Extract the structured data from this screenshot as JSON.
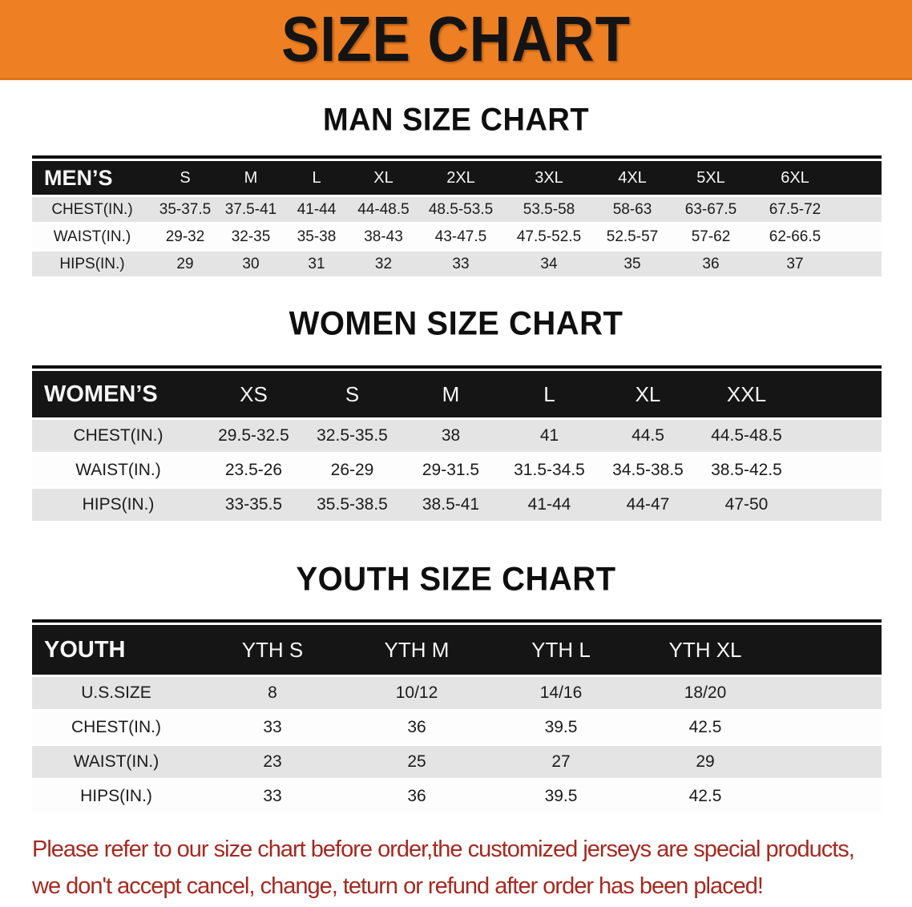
{
  "banner": {
    "title": "SIZE CHART"
  },
  "colors": {
    "banner_bg": "#EE8023",
    "banner_border": "#DD7419",
    "header_bg": "#151515",
    "row_gray": "#E4E4E4",
    "row_white": "#FDFDFD",
    "text_dark": "#1B1B1B",
    "footer_red": "#A32A22"
  },
  "sections": [
    {
      "key": "men",
      "heading": "MAN SIZE CHART",
      "table": {
        "header_label": "MEN’S",
        "sizes": [
          "S",
          "M",
          "L",
          "XL",
          "2XL",
          "3XL",
          "4XL",
          "5XL",
          "6XL"
        ],
        "rows": [
          {
            "label": "CHEST(IN.)",
            "values": [
              "35-37.5",
              "37.5-41",
              "41-44",
              "44-48.5",
              "48.5-53.5",
              "53.5-58",
              "58-63",
              "63-67.5",
              "67.5-72"
            ]
          },
          {
            "label": "WAIST(IN.)",
            "values": [
              "29-32",
              "32-35",
              "35-38",
              "38-43",
              "43-47.5",
              "47.5-52.5",
              "52.5-57",
              "57-62",
              "62-66.5"
            ]
          },
          {
            "label": "HIPS(IN.)",
            "values": [
              "29",
              "30",
              "31",
              "32",
              "33",
              "34",
              "35",
              "36",
              "37"
            ]
          }
        ]
      }
    },
    {
      "key": "women",
      "heading": "WOMEN SIZE CHART",
      "table": {
        "header_label": "WOMEN’S",
        "sizes": [
          "XS",
          "S",
          "M",
          "L",
          "XL",
          "XXL"
        ],
        "rows": [
          {
            "label": "CHEST(IN.)",
            "values": [
              "29.5-32.5",
              "32.5-35.5",
              "38",
              "41",
              "44.5",
              "44.5-48.5"
            ]
          },
          {
            "label": "WAIST(IN.)",
            "values": [
              "23.5-26",
              "26-29",
              "29-31.5",
              "31.5-34.5",
              "34.5-38.5",
              "38.5-42.5"
            ]
          },
          {
            "label": "HIPS(IN.)",
            "values": [
              "33-35.5",
              "35.5-38.5",
              "38.5-41",
              "41-44",
              "44-47",
              "47-50"
            ]
          }
        ]
      }
    },
    {
      "key": "youth",
      "heading": "YOUTH SIZE CHART",
      "table": {
        "header_label": "YOUTH",
        "sizes": [
          "YTH S",
          "YTH M",
          "YTH L",
          "YTH XL"
        ],
        "rows": [
          {
            "label": "U.S.SIZE",
            "values": [
              "8",
              "10/12",
              "14/16",
              "18/20"
            ]
          },
          {
            "label": "CHEST(IN.)",
            "values": [
              "33",
              "36",
              "39.5",
              "42.5"
            ]
          },
          {
            "label": "WAIST(IN.)",
            "values": [
              "23",
              "25",
              "27",
              "29"
            ]
          },
          {
            "label": "HIPS(IN.)",
            "values": [
              "33",
              "36",
              "39.5",
              "42.5"
            ]
          }
        ]
      }
    }
  ],
  "footer": {
    "line1": "Please refer to our size chart before order,the customized jerseys are special products,",
    "line2": "we don't accept cancel, change, teturn or refund after order has been placed!"
  }
}
